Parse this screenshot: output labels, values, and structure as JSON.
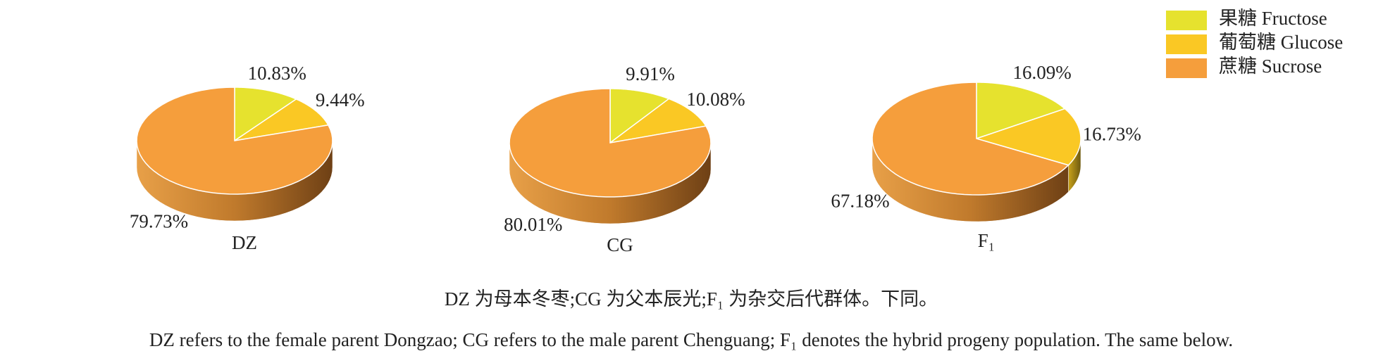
{
  "legend": {
    "labels": [
      "果糖 Fructose",
      "葡萄糖 Glucose",
      "蔗糖 Sucrose"
    ],
    "colors": [
      "#e6e22e",
      "#fac824",
      "#f59e3c"
    ]
  },
  "chart_data": [
    {
      "type": "pie",
      "title": "DZ",
      "values": [
        10.83,
        9.44,
        79.73
      ],
      "value_labels": [
        "10.83%",
        "9.44%",
        "79.73%"
      ]
    },
    {
      "type": "pie",
      "title": "CG",
      "values": [
        9.91,
        10.08,
        80.01
      ],
      "value_labels": [
        "9.91%",
        "10.08%",
        "80.01%"
      ]
    },
    {
      "type": "pie",
      "title": "F₁",
      "values": [
        16.09,
        16.73,
        67.18
      ],
      "value_labels": [
        "16.09%",
        "16.73%",
        "67.18%"
      ]
    }
  ],
  "caption": [
    "DZ 为母本冬枣;CG 为父本辰光;F₁ 为杂交后代群体。下同。",
    "DZ refers to the female parent Dongzao; CG refers to the male parent Chenguang; F₁ denotes the hybrid progeny population. The same below."
  ]
}
